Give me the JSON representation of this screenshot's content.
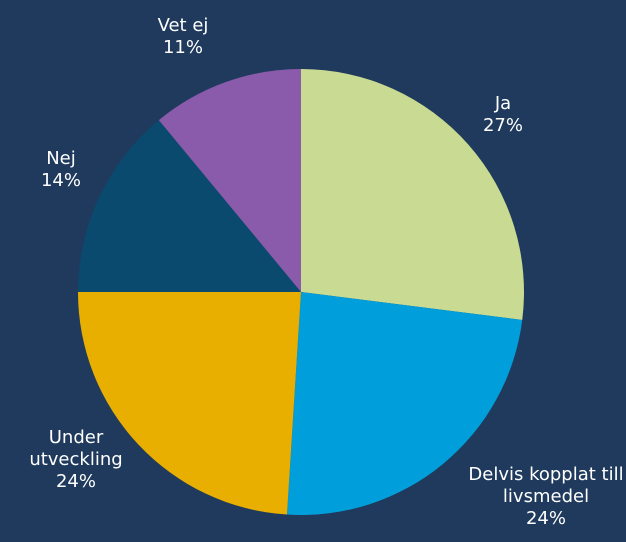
{
  "chart_data": {
    "type": "pie",
    "categories": [
      "Ja",
      "Delvis kopplat till livsmedel",
      "Under utveckling",
      "Nej",
      "Vet ej"
    ],
    "values": [
      27,
      24,
      24,
      14,
      11
    ],
    "value_labels": [
      "27%",
      "24%",
      "24%",
      "14%",
      "11%"
    ],
    "colors": [
      "#c9da92",
      "#009fdb",
      "#e8ae00",
      "#0a4a6e",
      "#8a5aab"
    ],
    "background": "#1f3a5c"
  }
}
